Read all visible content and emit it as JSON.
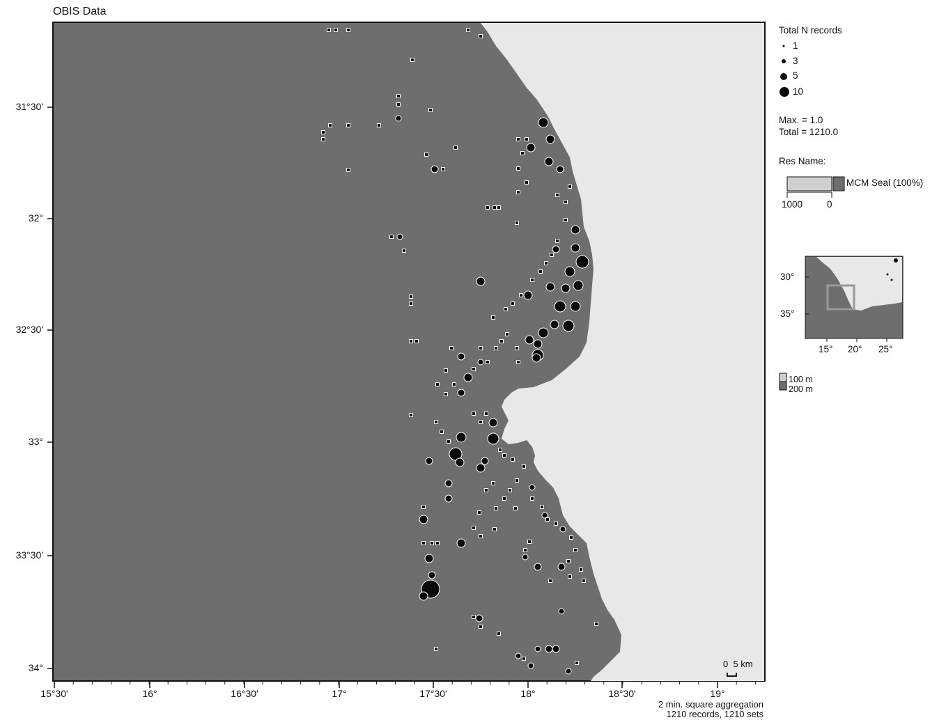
{
  "title": "OBIS Data",
  "axes": {
    "latitude_labels": [
      "31°30'",
      "32°",
      "32°30'",
      "33°",
      "33°30'",
      "34°"
    ],
    "longitude_labels": [
      "15°30'",
      "16°",
      "16°30'",
      "17°",
      "17°30'",
      "18°",
      "18°30'",
      "19°"
    ]
  },
  "legend": {
    "size_title": "Total N records",
    "size_items": [
      {
        "label": "1",
        "value": 1
      },
      {
        "label": "3",
        "value": 3
      },
      {
        "label": "5",
        "value": 5
      },
      {
        "label": "10",
        "value": 10
      }
    ],
    "max_text": "Max. = 1.0",
    "total_text": "Total = 1210.0",
    "res_name_title": "Res Name:",
    "res_name_item": "MCM Seal (100%)",
    "bar_scale_left": "1000",
    "bar_scale_right": "0",
    "depth_items": [
      "100 m",
      "200 m"
    ]
  },
  "inset": {
    "lat_labels": [
      "30°",
      "35°"
    ],
    "lon_labels": [
      "15°",
      "20°",
      "25°"
    ]
  },
  "scale_bar": {
    "label": "0  5 km"
  },
  "footer": {
    "line1": "2 min. square aggregation",
    "line2": "1210 records, 1210 sets"
  },
  "colors": {
    "sea": "#6e6e6e",
    "land": "#e8e8e8",
    "record_marker": "#0a0a0a",
    "marker_outline": "#ffffff"
  }
}
